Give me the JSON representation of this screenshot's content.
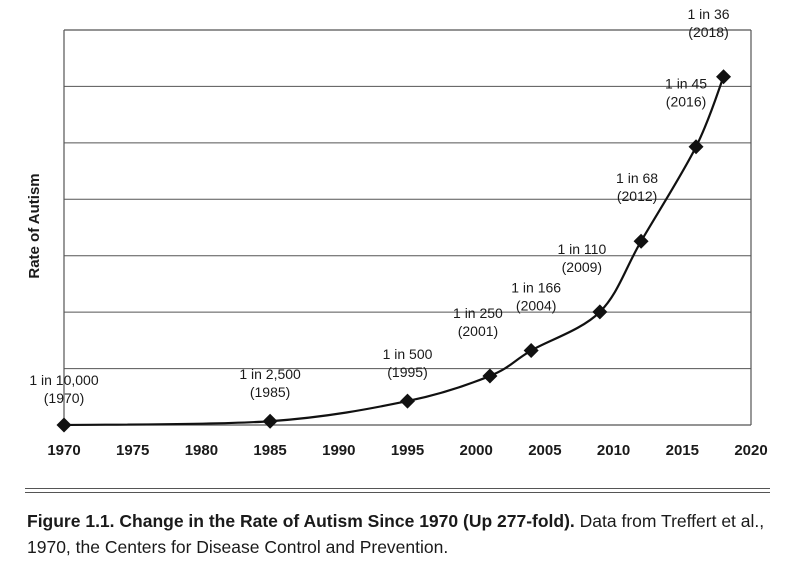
{
  "chart_data": {
    "type": "line",
    "ylabel": "Rate of Autism",
    "xlabel": "",
    "xlim": [
      1970,
      2020
    ],
    "x_ticks": [
      "1970",
      "1975",
      "1980",
      "1985",
      "1990",
      "1995",
      "2000",
      "2005",
      "2010",
      "2015",
      "2020"
    ],
    "y_gridlines": 7,
    "grid": true,
    "points": [
      {
        "x": 1970,
        "y": 1,
        "label": "1 in 10,000",
        "year_label": "(1970)"
      },
      {
        "x": 1985,
        "y": 4,
        "label": "1 in 2,500",
        "year_label": "(1985)"
      },
      {
        "x": 1995,
        "y": 20,
        "label": "1 in 500",
        "year_label": "(1995)"
      },
      {
        "x": 2001,
        "y": 40,
        "label": "1 in 250",
        "year_label": "(2001)"
      },
      {
        "x": 2004,
        "y": 60.2,
        "label": "1 in 166",
        "year_label": "(2004)"
      },
      {
        "x": 2009,
        "y": 90.9,
        "label": "1 in 110",
        "year_label": "(2009)"
      },
      {
        "x": 2012,
        "y": 147.1,
        "label": "1 in 68",
        "year_label": "(2012)"
      },
      {
        "x": 2016,
        "y": 222.2,
        "label": "1 in 45",
        "year_label": "(2016)"
      },
      {
        "x": 2018,
        "y": 277.8,
        "label": "1 in 36",
        "year_label": "(2018)"
      }
    ]
  },
  "caption": {
    "title": "Figure 1.1. Change in the Rate of Autism Since 1970 (Up 277-fold).",
    "text": " Data from Treffert et al., 1970, the Centers for Disease Control and Prevention."
  }
}
